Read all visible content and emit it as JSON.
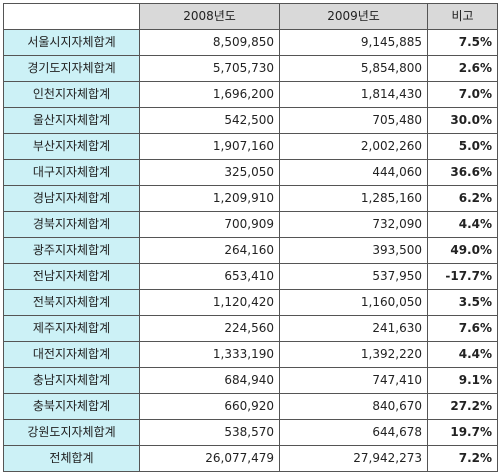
{
  "header": {
    "corner": "",
    "col_2008": "2008년도",
    "col_2009": "2009년도",
    "col_note": "비고"
  },
  "rows": [
    {
      "name": "서울시지자체합계",
      "y2008": "8,509,850",
      "y2009": "9,145,885",
      "note": "7.5%"
    },
    {
      "name": "경기도지자체합계",
      "y2008": "5,705,730",
      "y2009": "5,854,800",
      "note": "2.6%"
    },
    {
      "name": "인천지자체합계",
      "y2008": "1,696,200",
      "y2009": "1,814,430",
      "note": "7.0%"
    },
    {
      "name": "울산지자체합계",
      "y2008": "542,500",
      "y2009": "705,480",
      "note": "30.0%"
    },
    {
      "name": "부산지자체합계",
      "y2008": "1,907,160",
      "y2009": "2,002,260",
      "note": "5.0%"
    },
    {
      "name": "대구지자체합계",
      "y2008": "325,050",
      "y2009": "444,060",
      "note": "36.6%"
    },
    {
      "name": "경남지자체합계",
      "y2008": "1,209,910",
      "y2009": "1,285,160",
      "note": "6.2%"
    },
    {
      "name": "경북지자체합계",
      "y2008": "700,909",
      "y2009": "732,090",
      "note": "4.4%"
    },
    {
      "name": "광주지자체합계",
      "y2008": "264,160",
      "y2009": "393,500",
      "note": "49.0%"
    },
    {
      "name": "전남지자체합계",
      "y2008": "653,410",
      "y2009": "537,950",
      "note": "-17.7%"
    },
    {
      "name": "전북지자체합계",
      "y2008": "1,120,420",
      "y2009": "1,160,050",
      "note": "3.5%"
    },
    {
      "name": "제주지자체합계",
      "y2008": "224,560",
      "y2009": "241,630",
      "note": "7.6%"
    },
    {
      "name": "대전지자체합계",
      "y2008": "1,333,190",
      "y2009": "1,392,220",
      "note": "4.4%"
    },
    {
      "name": "충남지자체합계",
      "y2008": "684,940",
      "y2009": "747,410",
      "note": "9.1%"
    },
    {
      "name": "충북지자체합계",
      "y2008": "660,920",
      "y2009": "840,670",
      "note": "27.2%"
    },
    {
      "name": "강원도지자체합계",
      "y2008": "538,570",
      "y2009": "644,678",
      "note": "19.7%"
    },
    {
      "name": "전체합계",
      "y2008": "26,077,479",
      "y2009": "27,942,273",
      "note": "7.2%"
    }
  ]
}
